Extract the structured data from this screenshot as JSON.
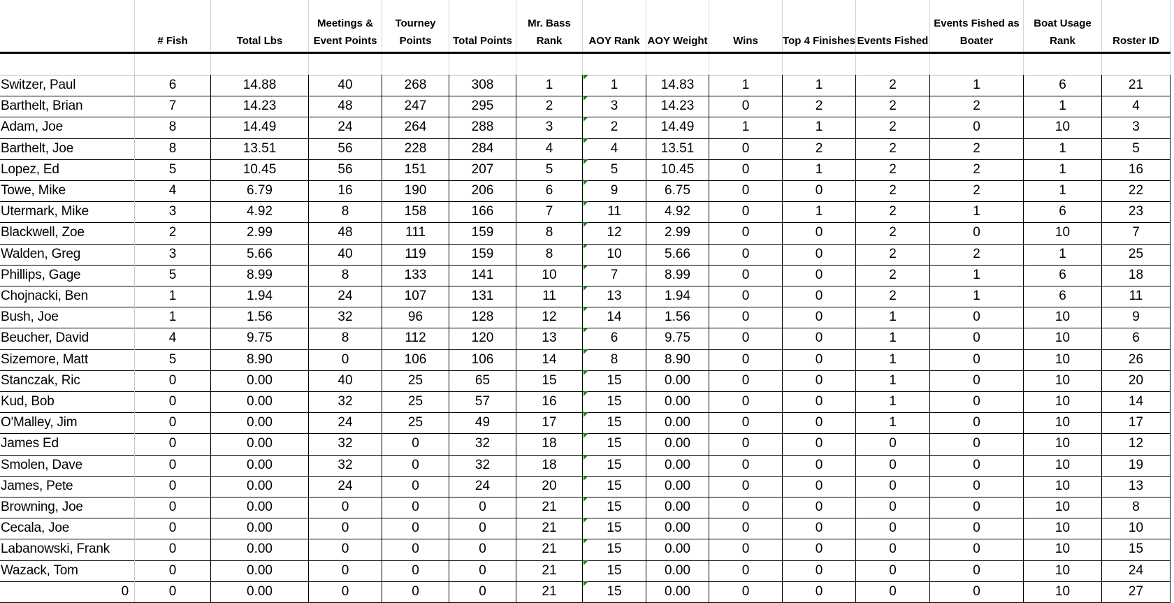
{
  "headers": [
    "",
    "# Fish",
    "Total Lbs",
    "Meetings & Event Points",
    "Tourney Points",
    "Total Points",
    "Mr. Bass Rank",
    "AOY Rank",
    "AOY Weight",
    "Wins",
    "Top 4 Finishes",
    "Events Fished",
    "Events Fished as Boater",
    "Boat Usage Rank",
    "Roster ID"
  ],
  "rows": [
    [
      "Switzer, Paul",
      "6",
      "14.88",
      "40",
      "268",
      "308",
      "1",
      "1",
      "14.83",
      "1",
      "1",
      "2",
      "1",
      "6",
      "21"
    ],
    [
      "Barthelt, Brian",
      "7",
      "14.23",
      "48",
      "247",
      "295",
      "2",
      "3",
      "14.23",
      "0",
      "2",
      "2",
      "2",
      "1",
      "4"
    ],
    [
      "Adam, Joe",
      "8",
      "14.49",
      "24",
      "264",
      "288",
      "3",
      "2",
      "14.49",
      "1",
      "1",
      "2",
      "0",
      "10",
      "3"
    ],
    [
      "Barthelt, Joe",
      "8",
      "13.51",
      "56",
      "228",
      "284",
      "4",
      "4",
      "13.51",
      "0",
      "2",
      "2",
      "2",
      "1",
      "5"
    ],
    [
      "Lopez, Ed",
      "5",
      "10.45",
      "56",
      "151",
      "207",
      "5",
      "5",
      "10.45",
      "0",
      "1",
      "2",
      "2",
      "1",
      "16"
    ],
    [
      "Towe, Mike",
      "4",
      "6.79",
      "16",
      "190",
      "206",
      "6",
      "9",
      "6.75",
      "0",
      "0",
      "2",
      "2",
      "1",
      "22"
    ],
    [
      "Utermark, Mike",
      "3",
      "4.92",
      "8",
      "158",
      "166",
      "7",
      "11",
      "4.92",
      "0",
      "1",
      "2",
      "1",
      "6",
      "23"
    ],
    [
      "Blackwell, Zoe",
      "2",
      "2.99",
      "48",
      "111",
      "159",
      "8",
      "12",
      "2.99",
      "0",
      "0",
      "2",
      "0",
      "10",
      "7"
    ],
    [
      "Walden, Greg",
      "3",
      "5.66",
      "40",
      "119",
      "159",
      "8",
      "10",
      "5.66",
      "0",
      "0",
      "2",
      "2",
      "1",
      "25"
    ],
    [
      "Phillips, Gage",
      "5",
      "8.99",
      "8",
      "133",
      "141",
      "10",
      "7",
      "8.99",
      "0",
      "0",
      "2",
      "1",
      "6",
      "18"
    ],
    [
      "Chojnacki, Ben",
      "1",
      "1.94",
      "24",
      "107",
      "131",
      "11",
      "13",
      "1.94",
      "0",
      "0",
      "2",
      "1",
      "6",
      "11"
    ],
    [
      "Bush, Joe",
      "1",
      "1.56",
      "32",
      "96",
      "128",
      "12",
      "14",
      "1.56",
      "0",
      "0",
      "1",
      "0",
      "10",
      "9"
    ],
    [
      "Beucher, David",
      "4",
      "9.75",
      "8",
      "112",
      "120",
      "13",
      "6",
      "9.75",
      "0",
      "0",
      "1",
      "0",
      "10",
      "6"
    ],
    [
      "Sizemore, Matt",
      "5",
      "8.90",
      "0",
      "106",
      "106",
      "14",
      "8",
      "8.90",
      "0",
      "0",
      "1",
      "0",
      "10",
      "26"
    ],
    [
      "Stanczak, Ric",
      "0",
      "0.00",
      "40",
      "25",
      "65",
      "15",
      "15",
      "0.00",
      "0",
      "0",
      "1",
      "0",
      "10",
      "20"
    ],
    [
      "Kud, Bob",
      "0",
      "0.00",
      "32",
      "25",
      "57",
      "16",
      "15",
      "0.00",
      "0",
      "0",
      "1",
      "0",
      "10",
      "14"
    ],
    [
      "O'Malley, Jim",
      "0",
      "0.00",
      "24",
      "25",
      "49",
      "17",
      "15",
      "0.00",
      "0",
      "0",
      "1",
      "0",
      "10",
      "17"
    ],
    [
      "James Ed",
      "0",
      "0.00",
      "32",
      "0",
      "32",
      "18",
      "15",
      "0.00",
      "0",
      "0",
      "0",
      "0",
      "10",
      "12"
    ],
    [
      "Smolen, Dave",
      "0",
      "0.00",
      "32",
      "0",
      "32",
      "18",
      "15",
      "0.00",
      "0",
      "0",
      "0",
      "0",
      "10",
      "19"
    ],
    [
      "James, Pete",
      "0",
      "0.00",
      "24",
      "0",
      "24",
      "20",
      "15",
      "0.00",
      "0",
      "0",
      "0",
      "0",
      "10",
      "13"
    ],
    [
      "Browning, Joe",
      "0",
      "0.00",
      "0",
      "0",
      "0",
      "21",
      "15",
      "0.00",
      "0",
      "0",
      "0",
      "0",
      "10",
      "8"
    ],
    [
      "Cecala, Joe",
      "0",
      "0.00",
      "0",
      "0",
      "0",
      "21",
      "15",
      "0.00",
      "0",
      "0",
      "0",
      "0",
      "10",
      "10"
    ],
    [
      "Labanowski, Frank",
      "0",
      "0.00",
      "0",
      "0",
      "0",
      "21",
      "15",
      "0.00",
      "0",
      "0",
      "0",
      "0",
      "10",
      "15"
    ],
    [
      "Wazack, Tom",
      "0",
      "0.00",
      "0",
      "0",
      "0",
      "21",
      "15",
      "0.00",
      "0",
      "0",
      "0",
      "0",
      "10",
      "24"
    ],
    [
      "0",
      "0",
      "0.00",
      "0",
      "0",
      "0",
      "21",
      "15",
      "0.00",
      "0",
      "0",
      "0",
      "0",
      "10",
      "27"
    ]
  ],
  "colors": {
    "error_indicator": "#1e7b1e",
    "row_border": "#000000",
    "gridline": "#d4d4d4"
  },
  "error_indicator_column": "AOY Rank"
}
